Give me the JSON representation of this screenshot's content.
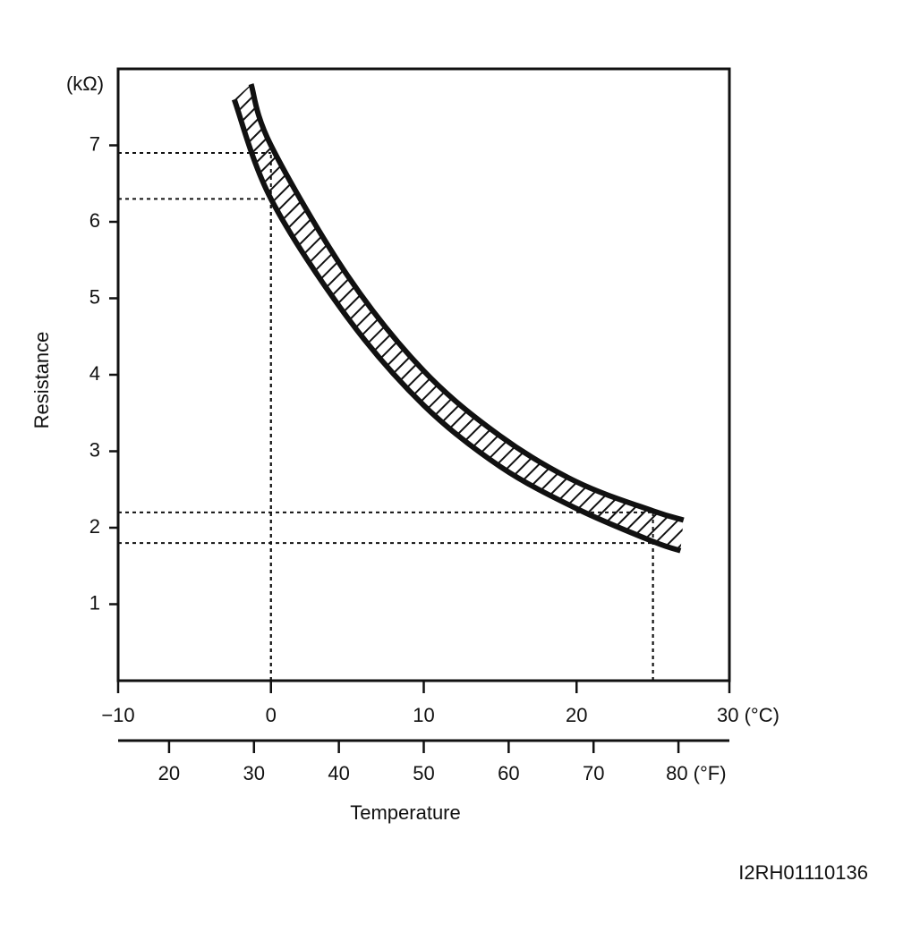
{
  "chart_data": {
    "type": "band",
    "y_label": "Resistance",
    "y_unit": "(kΩ)",
    "x_label": "Temperature",
    "code": "I2RH01110136",
    "xlim": [
      -10,
      30
    ],
    "xticks": [
      {
        "value": -10,
        "label": "−10"
      },
      0,
      10,
      20,
      {
        "value": 30,
        "label": "30 (°C)"
      }
    ],
    "x2lim": [
      14,
      86
    ],
    "x2ticks": [
      20,
      30,
      40,
      50,
      60,
      70,
      {
        "value": 80,
        "label": "80 (°F)"
      }
    ],
    "ylim": [
      0,
      8
    ],
    "yticks": [
      1,
      2,
      3,
      4,
      5,
      6,
      7
    ],
    "series": [
      {
        "name": "upper",
        "color": "#111111",
        "x": [
          -1.3,
          0,
          5,
          10,
          15,
          20,
          25,
          27
        ],
        "values": [
          7.8,
          7.0,
          5.3,
          4.05,
          3.2,
          2.6,
          2.22,
          2.1
        ]
      },
      {
        "name": "lower",
        "color": "#111111",
        "x": [
          -2.4,
          0,
          5,
          10,
          15,
          20,
          25,
          26.8
        ],
        "values": [
          7.6,
          6.3,
          4.75,
          3.6,
          2.8,
          2.25,
          1.82,
          1.7
        ]
      }
    ],
    "reference_points": [
      {
        "x": 0,
        "y": 6.9
      },
      {
        "x": 0,
        "y": 6.3
      },
      {
        "x": 25,
        "y": 2.2
      },
      {
        "x": 25,
        "y": 1.8
      }
    ]
  }
}
